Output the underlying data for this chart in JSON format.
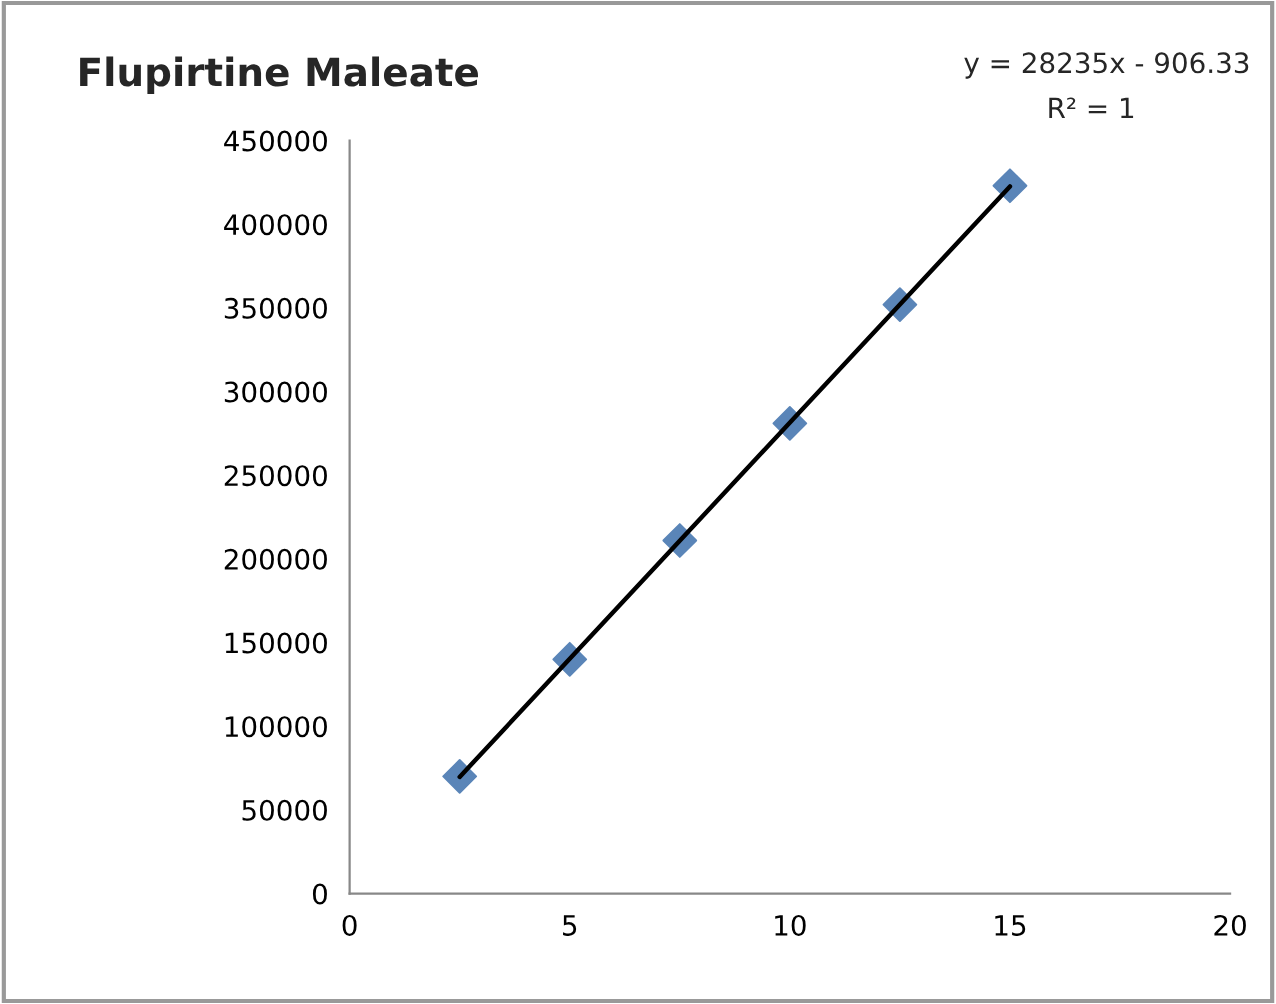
{
  "chart_data": {
    "type": "scatter",
    "title": "Flupirtine Maleate",
    "annotations": [
      "y = 28235x - 906.33",
      "R² = 1"
    ],
    "series": [
      {
        "color": "#5a85b8",
        "marker": "diamond",
        "x": [
          2.5,
          5,
          7.5,
          10,
          12.5,
          15
        ],
        "values": [
          70000,
          140000,
          211000,
          281000,
          352000,
          423000
        ]
      },
      {
        "type": "line",
        "color": "#000000",
        "marker": "none",
        "line_style": "solid",
        "x": [
          2.5,
          15
        ],
        "values": [
          69700,
          422600
        ]
      }
    ],
    "xlim": [
      0,
      20
    ],
    "xticks": [
      0,
      5,
      10,
      15,
      20
    ],
    "ylim": [
      0,
      450000
    ],
    "yticks": [
      0,
      50000,
      100000,
      150000,
      200000,
      250000,
      300000,
      350000,
      400000,
      450000
    ],
    "grid": false,
    "legend": false
  }
}
